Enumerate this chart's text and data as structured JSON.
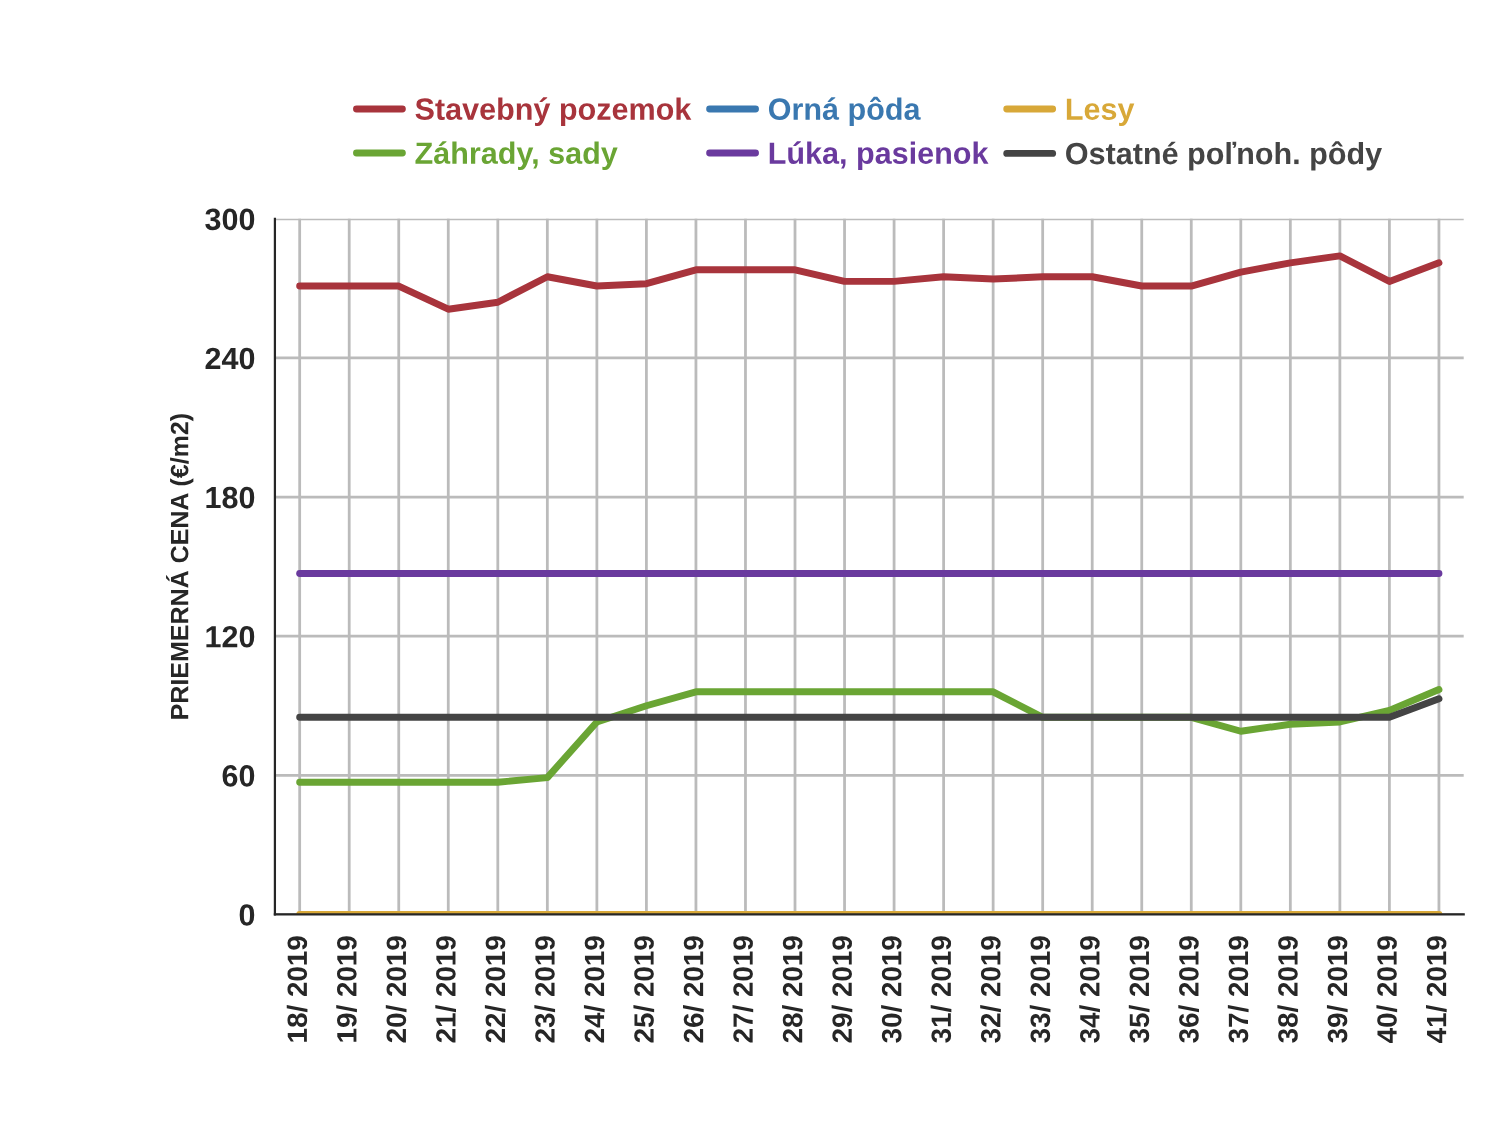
{
  "chart_data": {
    "type": "line",
    "ylabel": "PRIEMERNÁ CENA (€/m2)",
    "categories": [
      "18/ 2019",
      "19/ 2019",
      "20/ 2019",
      "21/ 2019",
      "22/ 2019",
      "23/ 2019",
      "24/ 2019",
      "25/ 2019",
      "26/ 2019",
      "27/ 2019",
      "28/ 2019",
      "29/ 2019",
      "30/ 2019",
      "31/ 2019",
      "32/ 2019",
      "33/ 2019",
      "34/ 2019",
      "35/ 2019",
      "36/ 2019",
      "37/ 2019",
      "38/ 2019",
      "39/ 2019",
      "40/ 2019",
      "41/ 2019"
    ],
    "series": [
      {
        "name": "Stavebný pozemok",
        "color": "#a8343c",
        "values": [
          271,
          271,
          271,
          261,
          264,
          275,
          271,
          272,
          278,
          278,
          278,
          273,
          273,
          275,
          274,
          275,
          275,
          271,
          271,
          277,
          281,
          284,
          273,
          281
        ]
      },
      {
        "name": "Záhrady, sady",
        "color": "#6aa534",
        "values": [
          57,
          57,
          57,
          57,
          57,
          59,
          83,
          90,
          96,
          96,
          96,
          96,
          96,
          96,
          96,
          85,
          85,
          85,
          85,
          79,
          82,
          83,
          88,
          97
        ]
      },
      {
        "name": "Orná pôda",
        "color": "#3a78b0",
        "values": [
          null,
          null,
          null,
          null,
          null,
          null,
          null,
          null,
          null,
          null,
          null,
          null,
          null,
          null,
          null,
          null,
          null,
          null,
          null,
          null,
          null,
          null,
          null,
          null
        ]
      },
      {
        "name": "Lúka, pasienok",
        "color": "#6a3a9e",
        "values": [
          147,
          147,
          147,
          147,
          147,
          147,
          147,
          147,
          147,
          147,
          147,
          147,
          147,
          147,
          147,
          147,
          147,
          147,
          147,
          147,
          147,
          147,
          147,
          147
        ]
      },
      {
        "name": "Lesy",
        "color": "#d8a838",
        "values": [
          0,
          0,
          0,
          0,
          0,
          0,
          0,
          0,
          0,
          0,
          0,
          0,
          0,
          0,
          0,
          0,
          0,
          0,
          0,
          0,
          0,
          0,
          0,
          0
        ]
      },
      {
        "name": "Ostatné poľnoh. pôdy",
        "color": "#444444",
        "values": [
          85,
          85,
          85,
          85,
          85,
          85,
          85,
          85,
          85,
          85,
          85,
          85,
          85,
          85,
          85,
          85,
          85,
          85,
          85,
          85,
          85,
          85,
          85,
          93
        ]
      }
    ],
    "ylim": [
      0,
      300
    ],
    "yticks": [
      0,
      60,
      120,
      180,
      240,
      300
    ],
    "grid": true,
    "legend": "top",
    "line_style": "solid",
    "marker": "none"
  }
}
